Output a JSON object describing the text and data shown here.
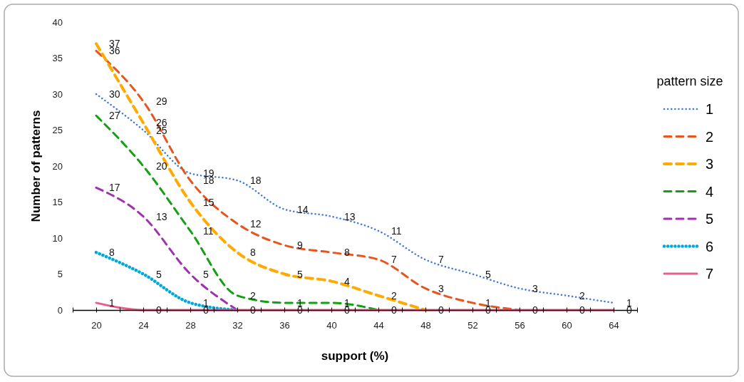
{
  "chart_data": {
    "type": "line",
    "xlabel": "support (%)",
    "ylabel": "Number of patterns",
    "legend_title": "pattern size",
    "legend": "right",
    "x": [
      20,
      24,
      28,
      32,
      36,
      40,
      44,
      48,
      52,
      56,
      60,
      64
    ],
    "xlim": [
      18,
      66
    ],
    "xticks": [
      {
        "value": 18,
        "label": null
      },
      20,
      {
        "value": 22,
        "label": null
      },
      24,
      {
        "value": 26,
        "label": null
      },
      28,
      {
        "value": 30,
        "label": null
      },
      32,
      {
        "value": 34,
        "label": null
      },
      36,
      {
        "value": 38,
        "label": null
      },
      40,
      {
        "value": 42,
        "label": null
      },
      44,
      {
        "value": 46,
        "label": null
      },
      48,
      {
        "value": 50,
        "label": null
      },
      52,
      {
        "value": 54,
        "label": null
      },
      56,
      {
        "value": 58,
        "label": null
      },
      60,
      {
        "value": 62,
        "label": null
      },
      64,
      {
        "value": 66,
        "label": null
      }
    ],
    "ylim": [
      0,
      40
    ],
    "yticks": [
      0,
      5,
      10,
      15,
      20,
      25,
      30,
      35,
      40
    ],
    "grid": false,
    "marker": "none",
    "series": [
      {
        "name": "1",
        "color": "#3f78d8",
        "line_style": "dotted",
        "values": [
          30,
          25,
          19,
          18,
          14,
          13,
          11,
          7,
          5,
          3,
          2,
          1
        ],
        "value_labels": [
          "30",
          "25",
          "19",
          "18",
          "14",
          "13",
          "11",
          "7",
          "5",
          "3",
          "2",
          "1"
        ]
      },
      {
        "name": "2",
        "color": "#e8541e",
        "line_style": "dashed",
        "values": [
          36,
          29,
          18,
          12,
          9,
          8,
          7,
          3,
          1,
          0,
          null,
          null
        ],
        "value_labels": [
          "36",
          "29",
          "18",
          "12",
          "9",
          "8",
          "7",
          "3",
          "1",
          null,
          null,
          null
        ]
      },
      {
        "name": "3",
        "color": "#ffaa00",
        "line_style": "dashed",
        "values": [
          37,
          26,
          15,
          8,
          5,
          4,
          2,
          0,
          null,
          null,
          null,
          null
        ],
        "value_labels": [
          "37",
          "26",
          "15",
          "8",
          "5",
          "4",
          "2",
          null,
          null,
          null,
          null,
          null
        ]
      },
      {
        "name": "4",
        "color": "#14a014",
        "line_style": "dashed",
        "values": [
          27,
          20,
          11,
          2,
          1,
          1,
          0,
          null,
          null,
          null,
          null,
          null
        ],
        "value_labels": [
          "27",
          "20",
          "11",
          "2",
          "1",
          "1",
          null,
          null,
          null,
          null,
          null,
          null
        ]
      },
      {
        "name": "5",
        "color": "#a030b0",
        "line_style": "dashed",
        "values": [
          17,
          13,
          5,
          0,
          null,
          null,
          null,
          null,
          null,
          null,
          null,
          null
        ],
        "value_labels": [
          "17",
          "13",
          "5",
          null,
          null,
          null,
          null,
          null,
          null,
          null,
          null,
          null
        ]
      },
      {
        "name": "6",
        "color": "#00a8dc",
        "line_style": "dotted",
        "values": [
          8,
          5,
          1,
          0,
          null,
          null,
          null,
          null,
          null,
          null,
          null,
          null
        ],
        "value_labels": [
          "8",
          "5",
          "1",
          null,
          null,
          null,
          null,
          null,
          null,
          null,
          null,
          null
        ]
      },
      {
        "name": "7",
        "color": "#e8608a",
        "line_style": "solid",
        "values": [
          1,
          0,
          0,
          0,
          0,
          0,
          0,
          0,
          0,
          0,
          0,
          0
        ],
        "value_labels": [
          "1",
          "0",
          "0",
          "0",
          "0",
          "0",
          "0",
          "0",
          "0",
          "0",
          "0",
          "0"
        ]
      }
    ]
  }
}
